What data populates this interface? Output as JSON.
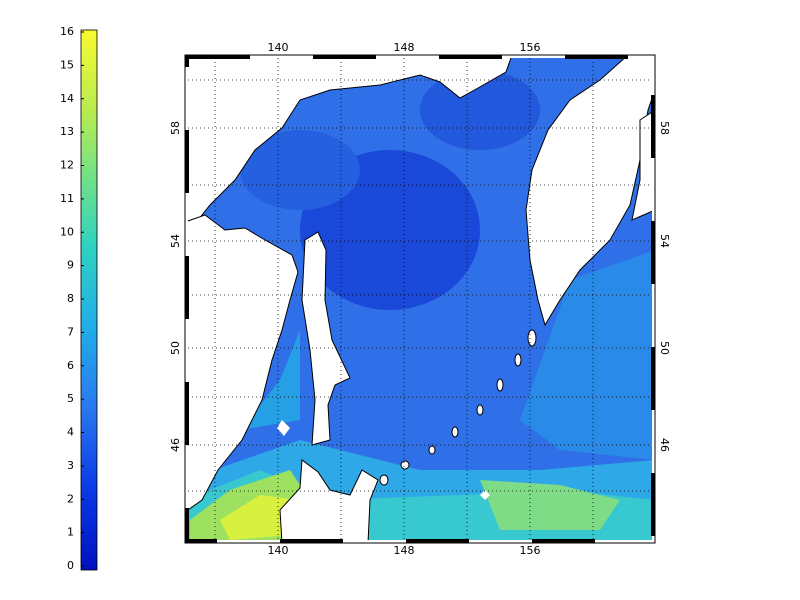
{
  "colorbar": {
    "ticks": [
      0,
      1,
      2,
      3,
      4,
      5,
      6,
      7,
      8,
      9,
      10,
      11,
      12,
      13,
      14,
      15,
      16
    ]
  },
  "map": {
    "lon_labels": [
      140,
      148,
      156
    ],
    "lat_labels": [
      58,
      54,
      50,
      46
    ]
  }
}
